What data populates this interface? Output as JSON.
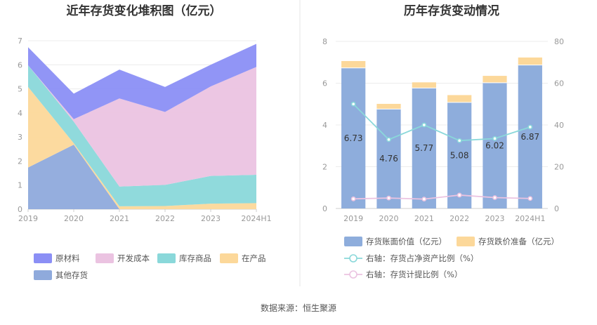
{
  "source_label": "数据来源：恒生聚源",
  "chart_data": [
    {
      "type": "area",
      "stacked": true,
      "title": "近年存货变化堆积图（亿元）",
      "categories": [
        "2019",
        "2020",
        "2021",
        "2022",
        "2023",
        "2024H1"
      ],
      "ylim": [
        0,
        7
      ],
      "yticks": [
        "0",
        "1",
        "2",
        "3",
        "4",
        "5",
        "6",
        "7"
      ],
      "grid": true,
      "legend_position": "bottom",
      "series": [
        {
          "name": "其他存货",
          "color": "#8faadc",
          "values": [
            1.73,
            2.68,
            0.0,
            0.0,
            0.0,
            0.0
          ]
        },
        {
          "name": "在产品",
          "color": "#fcd89a",
          "values": [
            3.35,
            0.06,
            0.12,
            0.13,
            0.23,
            0.25
          ]
        },
        {
          "name": "库存商品",
          "color": "#8ad8da",
          "values": [
            0.9,
            0.9,
            0.82,
            0.88,
            1.15,
            1.18
          ]
        },
        {
          "name": "开发成本",
          "color": "#ebc3e1",
          "values": [
            0.0,
            0.1,
            3.66,
            3.03,
            3.72,
            4.48
          ]
        },
        {
          "name": "原材料",
          "color": "#8b8ff5",
          "values": [
            0.75,
            1.06,
            1.2,
            1.04,
            0.9,
            0.96
          ]
        }
      ]
    },
    {
      "type": "bar",
      "stacked": true,
      "title": "历年存货变动情况",
      "categories": [
        "2019",
        "2020",
        "2021",
        "2022",
        "2023",
        "2024H1"
      ],
      "ylim": [
        0,
        8
      ],
      "yticks": [
        "0",
        "2",
        "4",
        "6",
        "8"
      ],
      "y2lim": [
        0,
        80
      ],
      "y2ticks": [
        "0",
        "20",
        "40",
        "60",
        "80"
      ],
      "grid": true,
      "legend_position": "bottom",
      "bars": [
        {
          "name": "存货账面价值（亿元）",
          "color": "#8eaddc",
          "values": [
            6.73,
            4.76,
            5.77,
            5.08,
            6.02,
            6.87
          ],
          "labels": [
            "6.73",
            "4.76",
            "5.77",
            "5.08",
            "6.02",
            "6.87"
          ]
        },
        {
          "name": "存货跌价准备（亿元）",
          "color": "#fcd89a",
          "values": [
            0.33,
            0.25,
            0.27,
            0.35,
            0.33,
            0.36
          ]
        }
      ],
      "lines": [
        {
          "name": "右轴：存货占净资产比例（%）",
          "color": "#8ad8da",
          "axis": "right",
          "values": [
            50,
            33,
            40,
            32.5,
            33.5,
            39
          ]
        },
        {
          "name": "右轴：存货计提比例（%）",
          "color": "#ebc3e1",
          "axis": "right",
          "values": [
            4.6,
            5.0,
            4.5,
            6.4,
            5.2,
            4.8
          ]
        }
      ]
    }
  ]
}
